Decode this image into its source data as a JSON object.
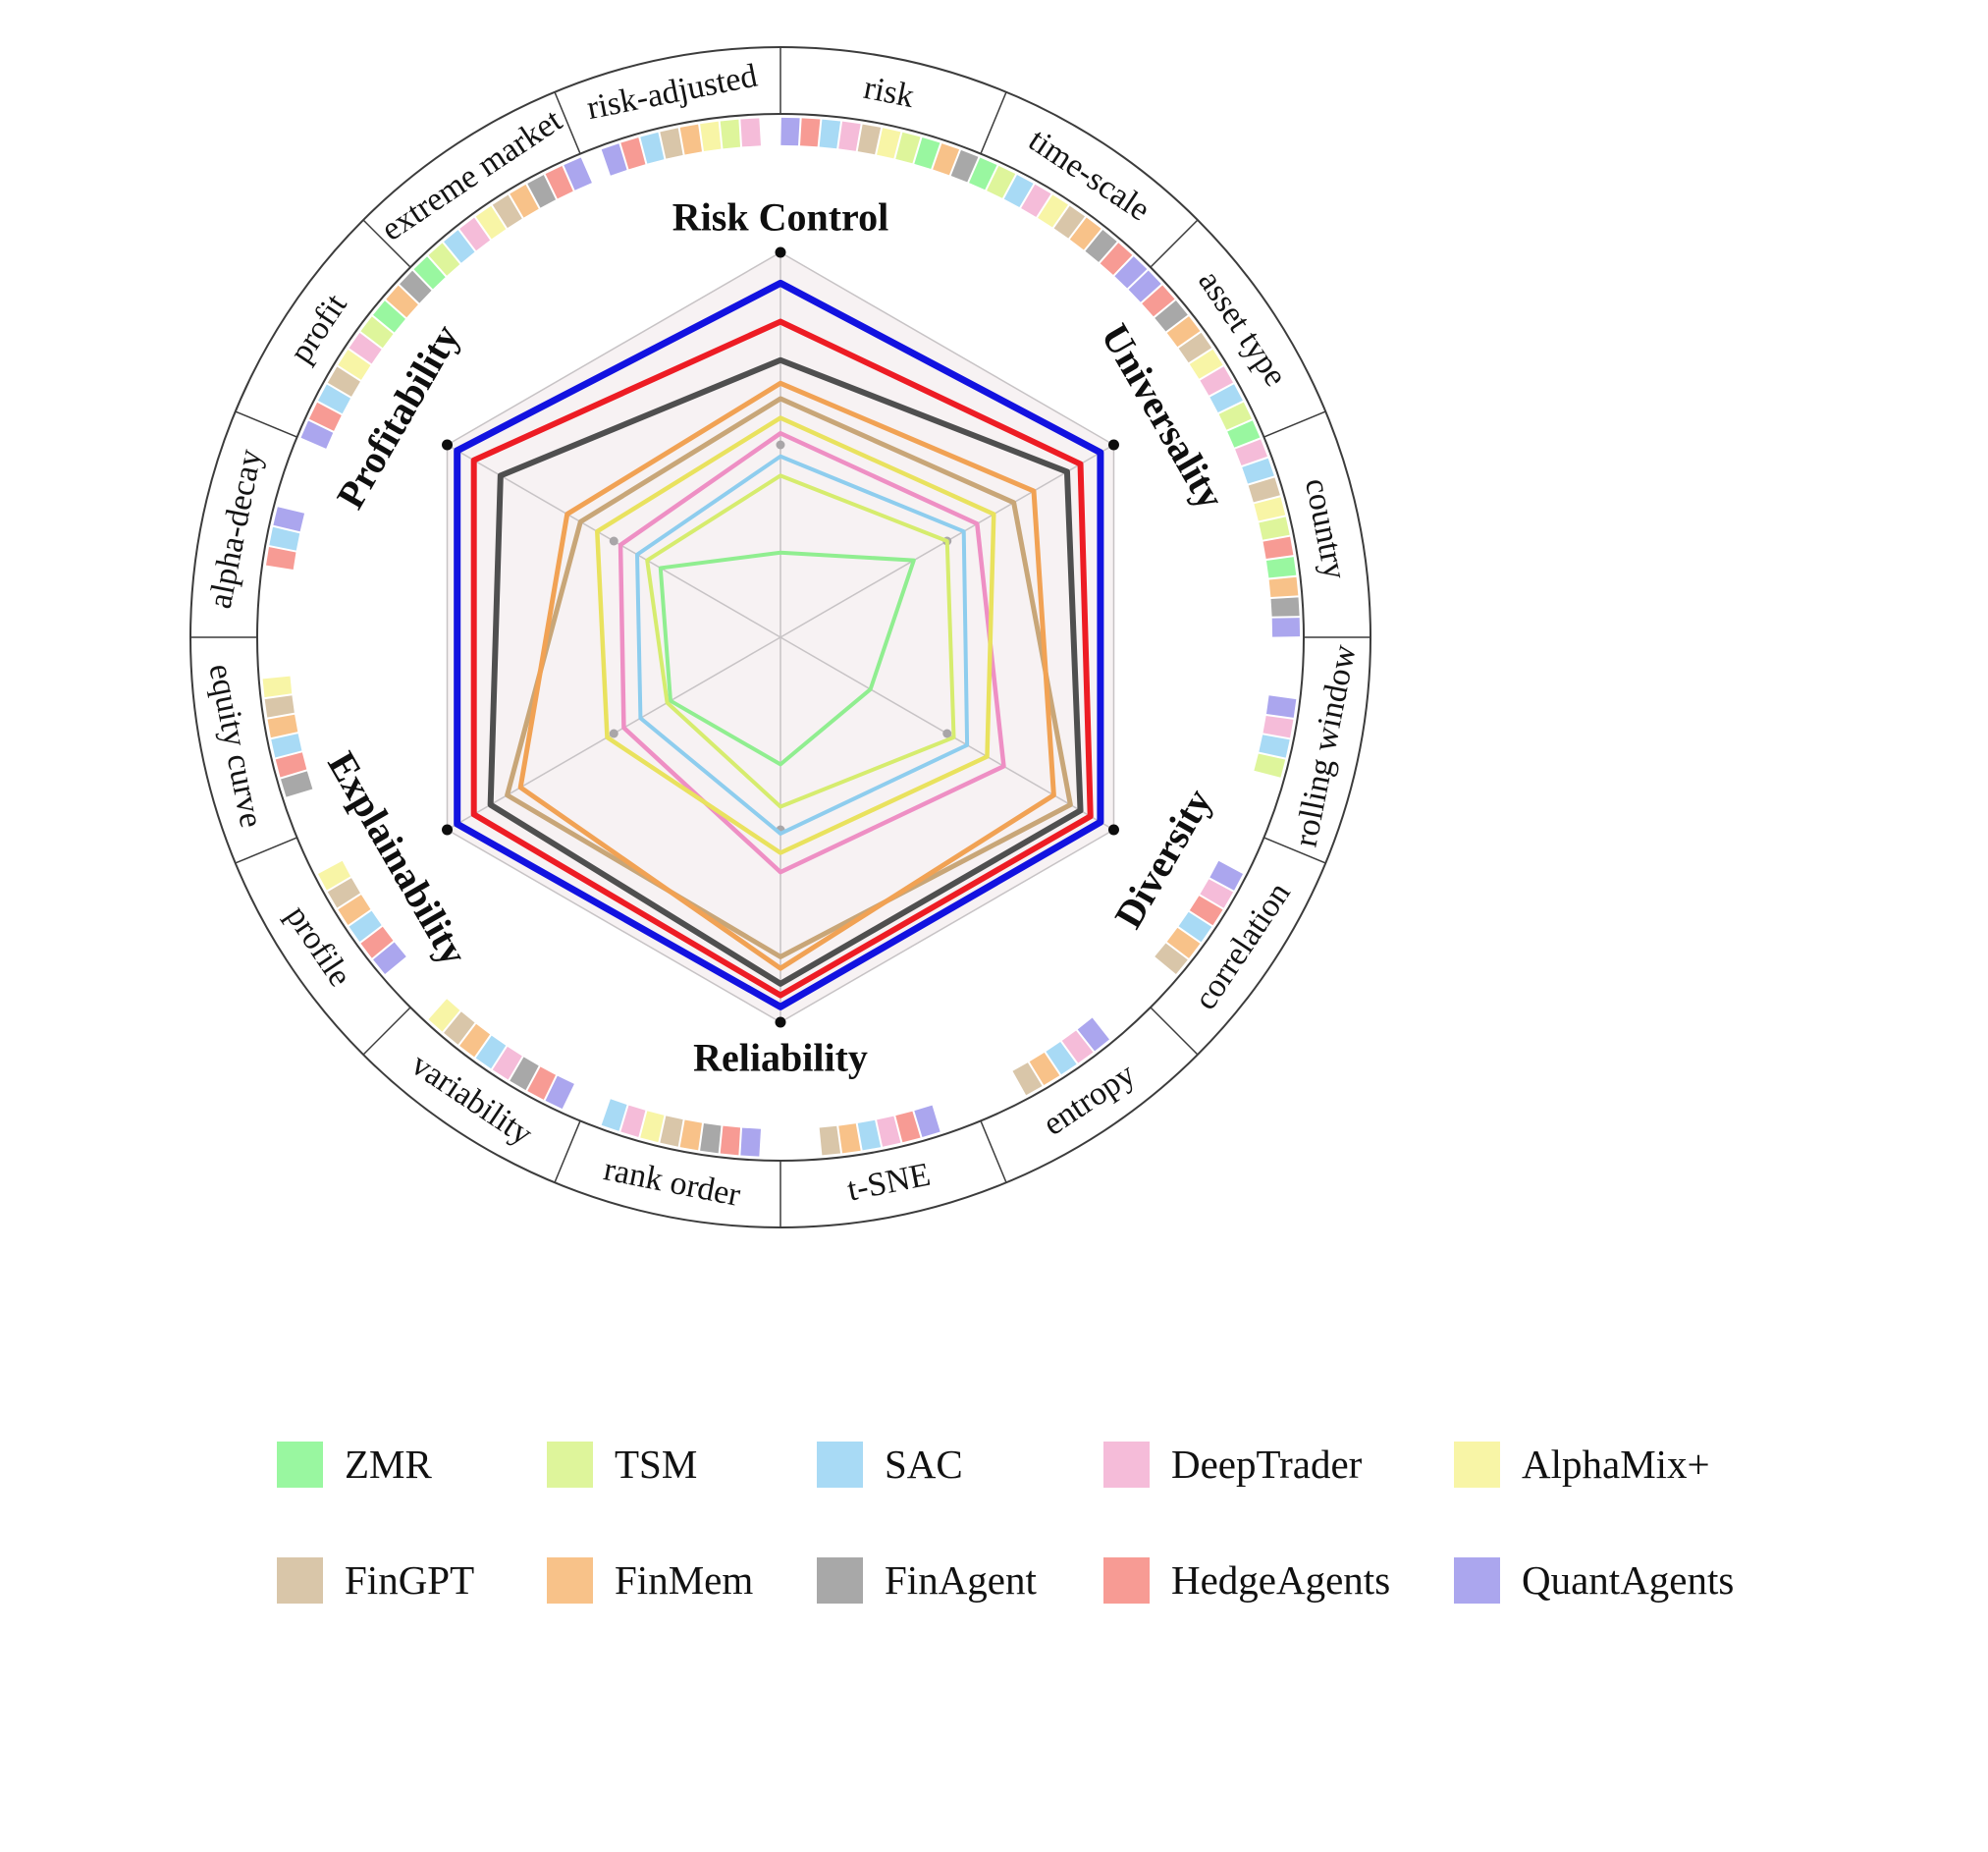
{
  "chart_data": {
    "type": "radar",
    "title": "",
    "axes": [
      "Risk Control",
      "Universality",
      "Diversity",
      "Reliability",
      "Explainability",
      "Profitability"
    ],
    "value_range": [
      0,
      1
    ],
    "grid": "hexagonal",
    "legend_position": "bottom",
    "series": [
      {
        "name": "ZMR",
        "line_color": "#90ee90",
        "swatch_color": "#99f7a0",
        "values": [
          0.22,
          0.4,
          0.27,
          0.33,
          0.33,
          0.36
        ]
      },
      {
        "name": "TSM",
        "line_color": "#d6ec6e",
        "swatch_color": "#def59b",
        "values": [
          0.42,
          0.5,
          0.52,
          0.44,
          0.34,
          0.4
        ]
      },
      {
        "name": "SAC",
        "line_color": "#8ecdee",
        "swatch_color": "#a8daf5",
        "values": [
          0.47,
          0.55,
          0.56,
          0.51,
          0.42,
          0.43
        ]
      },
      {
        "name": "DeepTrader",
        "line_color": "#ee8fc4",
        "swatch_color": "#f5bcd9",
        "values": [
          0.53,
          0.59,
          0.67,
          0.61,
          0.47,
          0.48
        ]
      },
      {
        "name": "AlphaMix+",
        "line_color": "#e9e25e",
        "swatch_color": "#f8f5a6",
        "values": [
          0.57,
          0.64,
          0.62,
          0.56,
          0.52,
          0.55
        ]
      },
      {
        "name": "FinGPT",
        "line_color": "#c8a678",
        "swatch_color": "#d9c6a9",
        "values": [
          0.62,
          0.7,
          0.87,
          0.83,
          0.82,
          0.6
        ]
      },
      {
        "name": "FinMem",
        "line_color": "#f1a254",
        "swatch_color": "#f8c289",
        "values": [
          0.66,
          0.76,
          0.82,
          0.86,
          0.78,
          0.64
        ]
      },
      {
        "name": "FinAgent",
        "line_color": "#4f4f4f",
        "swatch_color": "#a8a8a8",
        "values": [
          0.72,
          0.86,
          0.9,
          0.9,
          0.87,
          0.84
        ]
      },
      {
        "name": "HedgeAgents",
        "line_color": "#ed1c24",
        "swatch_color": "#f79b94",
        "values": [
          0.82,
          0.9,
          0.93,
          0.93,
          0.92,
          0.92
        ]
      },
      {
        "name": "QuantAgents",
        "line_color": "#1212e0",
        "swatch_color": "#aba6ee",
        "values": [
          0.92,
          0.96,
          0.96,
          0.96,
          0.97,
          0.97
        ]
      }
    ],
    "outer_ring": {
      "sectors": [
        {
          "label": "risk",
          "markers": [
            "QuantAgents",
            "HedgeAgents",
            "SAC",
            "DeepTrader",
            "FinGPT",
            "AlphaMix+",
            "TSM",
            "ZMR",
            "FinMem",
            "FinAgent"
          ]
        },
        {
          "label": "time-scale",
          "markers": [
            "ZMR",
            "TSM",
            "SAC",
            "DeepTrader",
            "AlphaMix+",
            "FinGPT",
            "FinMem",
            "FinAgent",
            "HedgeAgents",
            "QuantAgents"
          ]
        },
        {
          "label": "asset type",
          "markers": [
            "QuantAgents",
            "HedgeAgents",
            "FinAgent",
            "FinMem",
            "FinGPT",
            "AlphaMix+",
            "DeepTrader",
            "SAC",
            "TSM",
            "ZMR"
          ]
        },
        {
          "label": "country",
          "markers": [
            "DeepTrader",
            "SAC",
            "FinGPT",
            "AlphaMix+",
            "TSM",
            "HedgeAgents",
            "ZMR",
            "FinMem",
            "FinAgent",
            "QuantAgents"
          ]
        },
        {
          "label": "rolling window",
          "markers": [
            "TSM",
            "SAC",
            "DeepTrader",
            "QuantAgents"
          ]
        },
        {
          "label": "correlation",
          "markers": [
            "FinGPT",
            "FinMem",
            "SAC",
            "HedgeAgents",
            "DeepTrader",
            "QuantAgents"
          ]
        },
        {
          "label": "entropy",
          "markers": [
            "FinGPT",
            "FinMem",
            "SAC",
            "DeepTrader",
            "QuantAgents"
          ]
        },
        {
          "label": "t-SNE",
          "markers": [
            "FinGPT",
            "FinMem",
            "SAC",
            "DeepTrader",
            "HedgeAgents",
            "QuantAgents"
          ]
        },
        {
          "label": "rank order",
          "markers": [
            "SAC",
            "DeepTrader",
            "AlphaMix+",
            "FinGPT",
            "FinMem",
            "FinAgent",
            "HedgeAgents",
            "QuantAgents"
          ]
        },
        {
          "label": "variability",
          "markers": [
            "AlphaMix+",
            "FinGPT",
            "FinMem",
            "SAC",
            "DeepTrader",
            "FinAgent",
            "HedgeAgents",
            "QuantAgents"
          ]
        },
        {
          "label": "profile",
          "markers": [
            "AlphaMix+",
            "FinGPT",
            "FinMem",
            "SAC",
            "HedgeAgents",
            "QuantAgents"
          ]
        },
        {
          "label": "equity curve",
          "markers": [
            "AlphaMix+",
            "FinGPT",
            "FinMem",
            "SAC",
            "HedgeAgents",
            "FinAgent"
          ]
        },
        {
          "label": "alpha-decay",
          "markers": [
            "HedgeAgents",
            "SAC",
            "QuantAgents"
          ]
        },
        {
          "label": "profit",
          "markers": [
            "QuantAgents",
            "HedgeAgents",
            "SAC",
            "FinGPT",
            "AlphaMix+",
            "DeepTrader",
            "TSM",
            "ZMR",
            "FinMem",
            "FinAgent"
          ]
        },
        {
          "label": "extreme market",
          "markers": [
            "ZMR",
            "TSM",
            "SAC",
            "DeepTrader",
            "AlphaMix+",
            "FinGPT",
            "FinMem",
            "FinAgent",
            "HedgeAgents",
            "QuantAgents"
          ]
        },
        {
          "label": "risk-adjusted",
          "markers": [
            "QuantAgents",
            "HedgeAgents",
            "SAC",
            "FinGPT",
            "FinMem",
            "AlphaMix+",
            "TSM",
            "DeepTrader"
          ]
        }
      ]
    },
    "colors": {
      "ring_stroke": "#3c3c3c",
      "radar_fill": "#f7f2f3",
      "grid_stroke": "#c7c3c5",
      "mid_dot": "#a9a6a8",
      "vertex_dot": "#0d0d0d",
      "label_color": "#141414"
    }
  }
}
